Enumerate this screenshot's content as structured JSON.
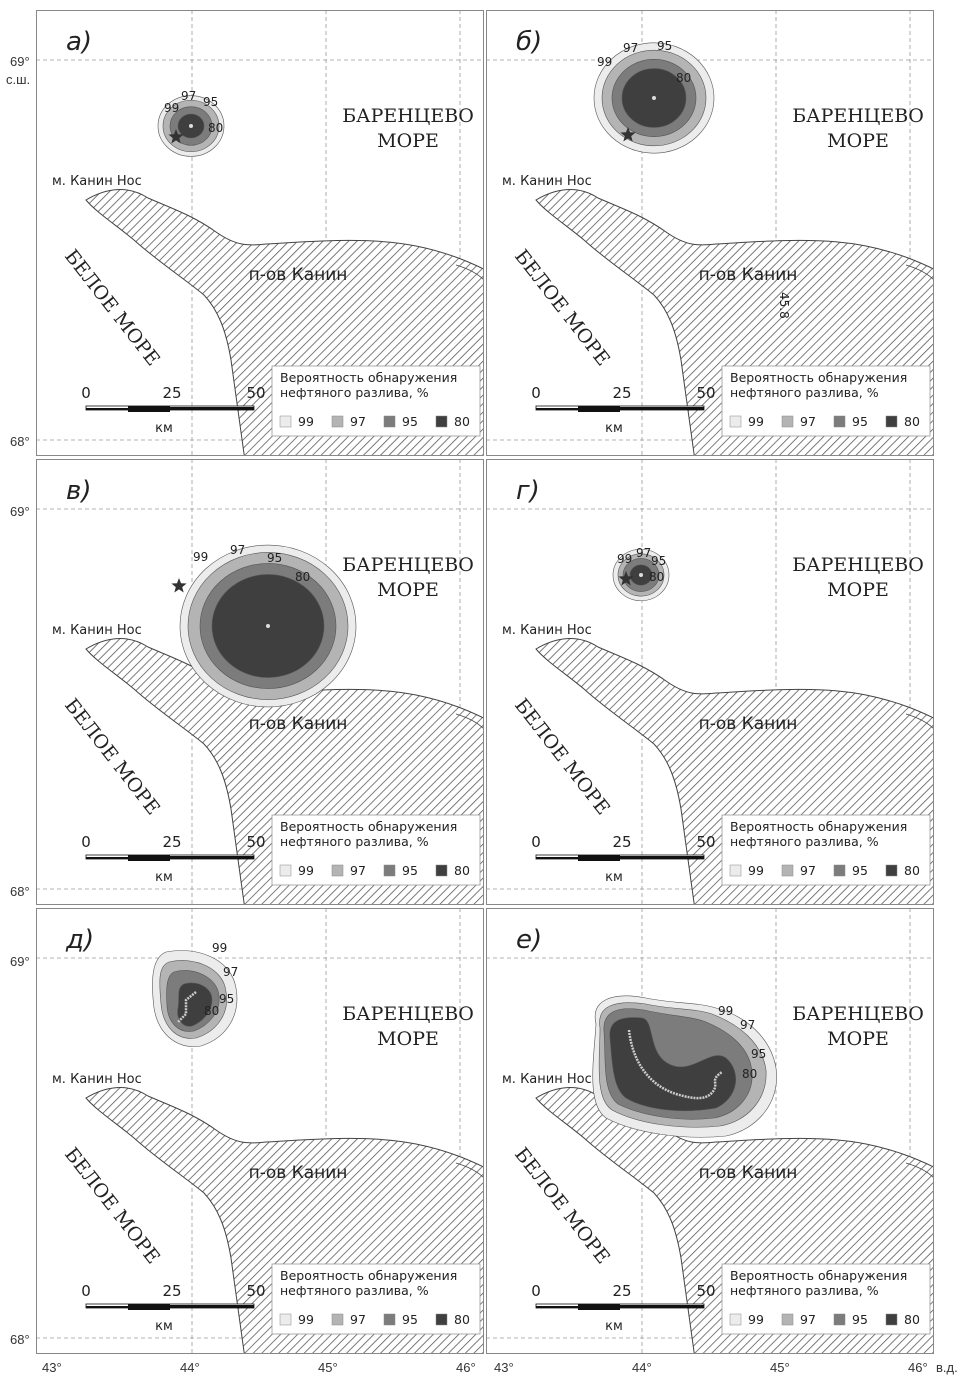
{
  "colors": {
    "c99": "#ececec",
    "c97": "#b4b4b4",
    "c95": "#7c7c7c",
    "c80": "#3f3f3f",
    "land_hatch": "#5a5a5a",
    "grid": "#9a9a9a"
  },
  "labels": {
    "barents_line1": "БАРЕНЦЕВО",
    "barents_line2": "МОРЕ",
    "white_sea": "БЕЛОЕ МОРЕ",
    "peninsula": "п-ов Канин",
    "cape": "м. Канин Нос",
    "scale_unit": "км",
    "scale_ticks": [
      "0",
      "25",
      "50"
    ],
    "legend_title_1": "Вероятность обнаружения",
    "legend_title_2": "нефтяного разлива, %",
    "legend_values": [
      "99",
      "97",
      "95",
      "80"
    ],
    "contour_labels": [
      "99",
      "97",
      "95",
      "80"
    ],
    "lat_top": "69°",
    "lat_bottom": "68°",
    "lat_unit": "с.ш.",
    "lon_unit": "в.д.",
    "lon_ticks": [
      "43°",
      "44°",
      "45°",
      "46°"
    ],
    "extra_label": "45.8"
  },
  "panels": [
    {
      "letter": "а)",
      "type": "disk",
      "scale": 0.28,
      "dx": 0,
      "dy": 0
    },
    {
      "letter": "б)",
      "type": "disk",
      "scale": 0.5,
      "dx": 0,
      "dy": 0
    },
    {
      "letter": "в)",
      "type": "disk",
      "scale": 0.85,
      "dx": 0,
      "dy": 0
    },
    {
      "letter": "г)",
      "type": "disk",
      "scale": 0.25,
      "dx": 0,
      "dy": 0
    },
    {
      "letter": "д)",
      "type": "blob",
      "scale": 0.35,
      "dx": 0,
      "dy": 0
    },
    {
      "letter": "е)",
      "type": "kidney",
      "scale": 1,
      "dx": 0,
      "dy": 0
    }
  ]
}
